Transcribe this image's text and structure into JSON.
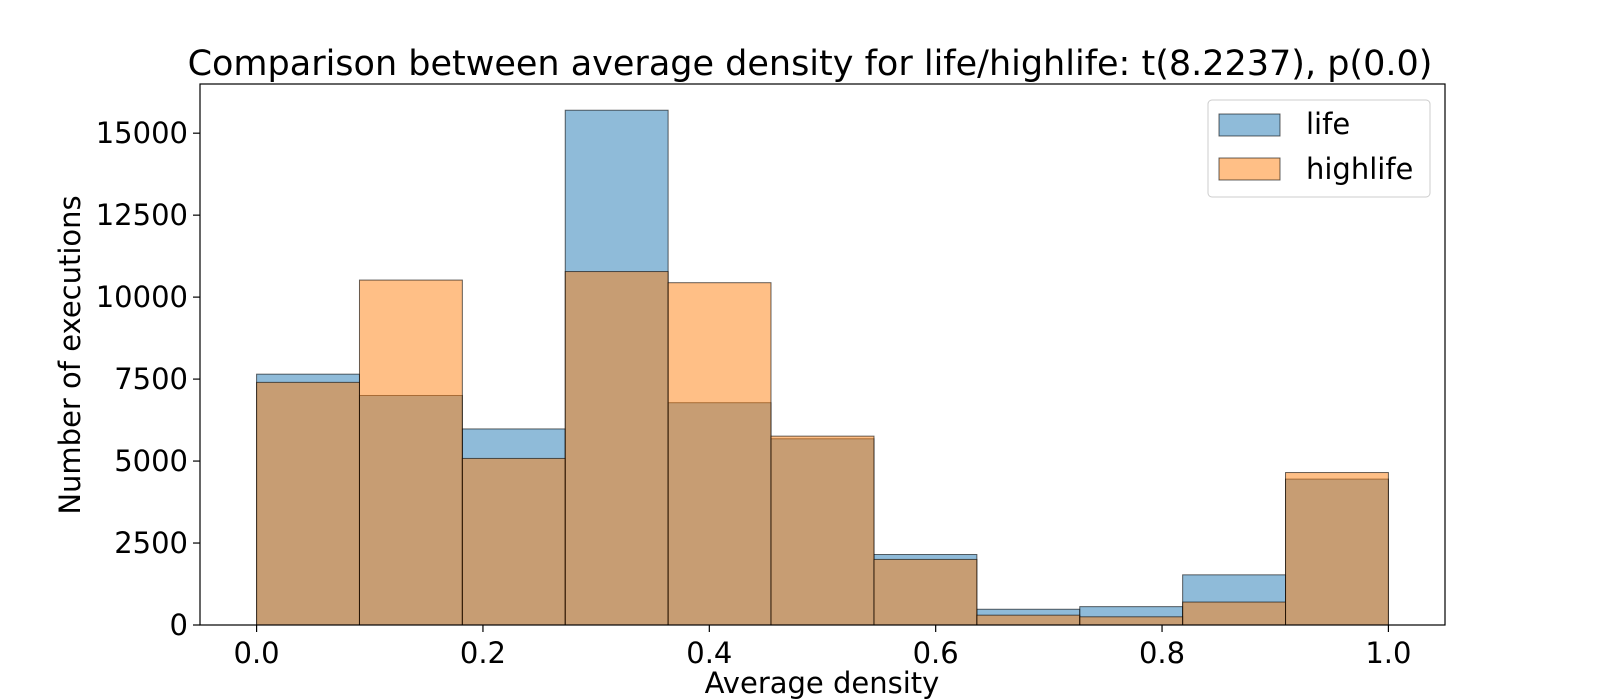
{
  "chart_data": {
    "type": "bar",
    "title": "Comparison between average density for life/highlife: t(8.2237), p(0.0)",
    "xlabel": "Average density",
    "ylabel": "Number of executions",
    "bin_edges": [
      0.0,
      0.0909,
      0.1818,
      0.2727,
      0.3636,
      0.4545,
      0.5455,
      0.6364,
      0.7273,
      0.8182,
      0.9091,
      1.0
    ],
    "xlim": [
      -0.05,
      1.05
    ],
    "ylim": [
      0,
      16500
    ],
    "xticks": [
      "0.0",
      "0.2",
      "0.4",
      "0.6",
      "0.8",
      "1.0"
    ],
    "yticks": [
      "0",
      "2500",
      "5000",
      "7500",
      "10000",
      "12500",
      "15000"
    ],
    "grid": false,
    "legend_position": "top-right",
    "series": [
      {
        "name": "life",
        "color": "#1f77b4",
        "alpha": 0.5,
        "values": [
          7650,
          7000,
          5980,
          15700,
          6780,
          5680,
          2150,
          480,
          560,
          1530,
          4450
        ]
      },
      {
        "name": "highlife",
        "color": "#ff7f0e",
        "alpha": 0.5,
        "values": [
          7400,
          10520,
          5080,
          10780,
          10440,
          5760,
          2000,
          300,
          250,
          700,
          4650
        ]
      }
    ]
  }
}
